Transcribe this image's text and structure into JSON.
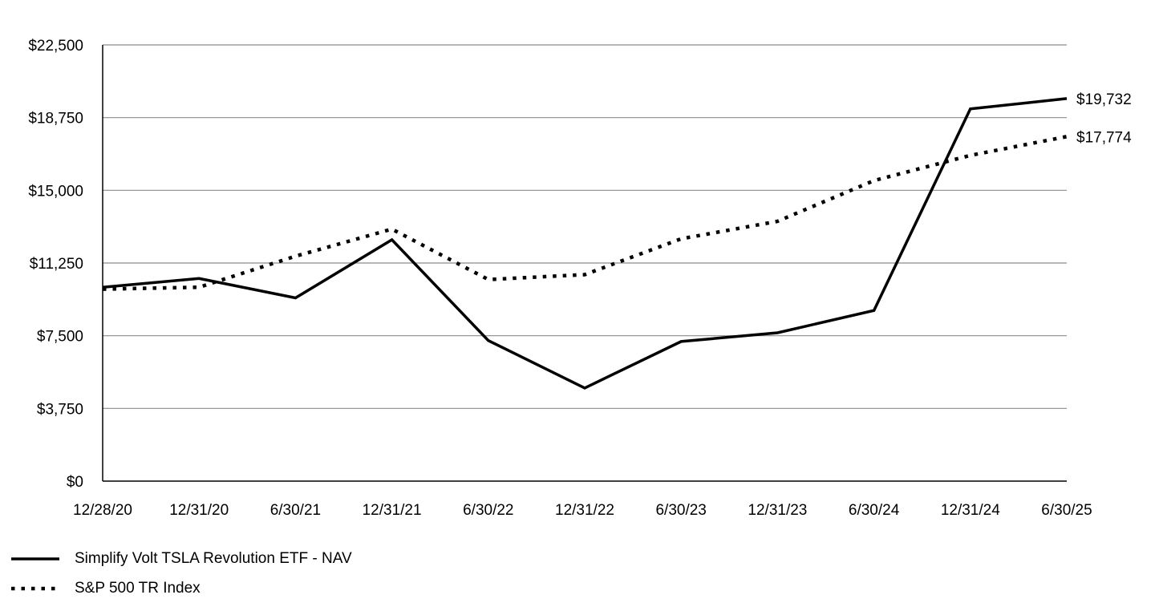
{
  "chart_data": {
    "type": "line",
    "title": "",
    "xlabel": "",
    "ylabel": "",
    "categories": [
      "12/28/20",
      "12/31/20",
      "6/30/21",
      "12/31/21",
      "6/30/22",
      "12/31/22",
      "6/30/23",
      "12/31/23",
      "6/30/24",
      "12/31/24",
      "6/30/25"
    ],
    "ylim": [
      0,
      22500
    ],
    "yticks": [
      0,
      3750,
      7500,
      11250,
      15000,
      18750,
      22500
    ],
    "ytick_labels": [
      "$0",
      "$3,750",
      "$7,500",
      "$11,250",
      "$15,000",
      "$18,750",
      "$22,500"
    ],
    "grid": true,
    "legend_position": "bottom-left",
    "series": [
      {
        "name": "Simplify Volt TSLA Revolution ETF - NAV",
        "style": "solid",
        "color": "#000000",
        "values": [
          10000,
          10450,
          9450,
          12450,
          7250,
          4800,
          7200,
          7650,
          8800,
          19200,
          19732
        ],
        "end_label": "$19,732"
      },
      {
        "name": "S&P 500 TR Index",
        "style": "dotted",
        "color": "#000000",
        "values": [
          9900,
          10000,
          11600,
          13000,
          10400,
          10650,
          12500,
          13400,
          15500,
          16800,
          17774
        ],
        "end_label": "$17,774"
      }
    ]
  },
  "colors": {
    "grid": "#8c8c8c",
    "axis": "#000000",
    "line": "#000000",
    "background": "#ffffff"
  }
}
